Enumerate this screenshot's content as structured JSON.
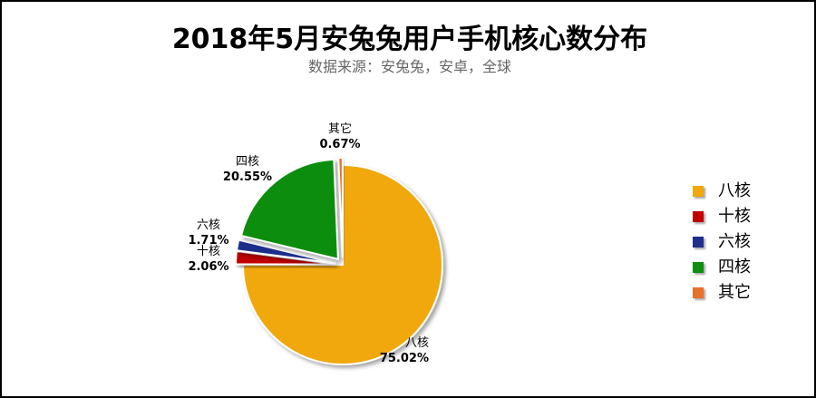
{
  "chart_data": {
    "type": "pie",
    "title": "2018年5月安兔兔用户手机核心数分布",
    "subtitle": "数据来源：安兔兔，安卓，全球",
    "legend_position": "right",
    "slices": [
      {
        "name": "八核",
        "value": 75.02,
        "label": "75.02%",
        "color": "#F0A80C"
      },
      {
        "name": "十核",
        "value": 2.06,
        "label": "2.06%",
        "color": "#C00000"
      },
      {
        "name": "六核",
        "value": 1.71,
        "label": "1.71%",
        "color": "#1F2F8C"
      },
      {
        "name": "四核",
        "value": 20.55,
        "label": "20.55%",
        "color": "#118D11"
      },
      {
        "name": "其它",
        "value": 0.67,
        "label": "0.67%",
        "color": "#E8702A"
      }
    ]
  }
}
